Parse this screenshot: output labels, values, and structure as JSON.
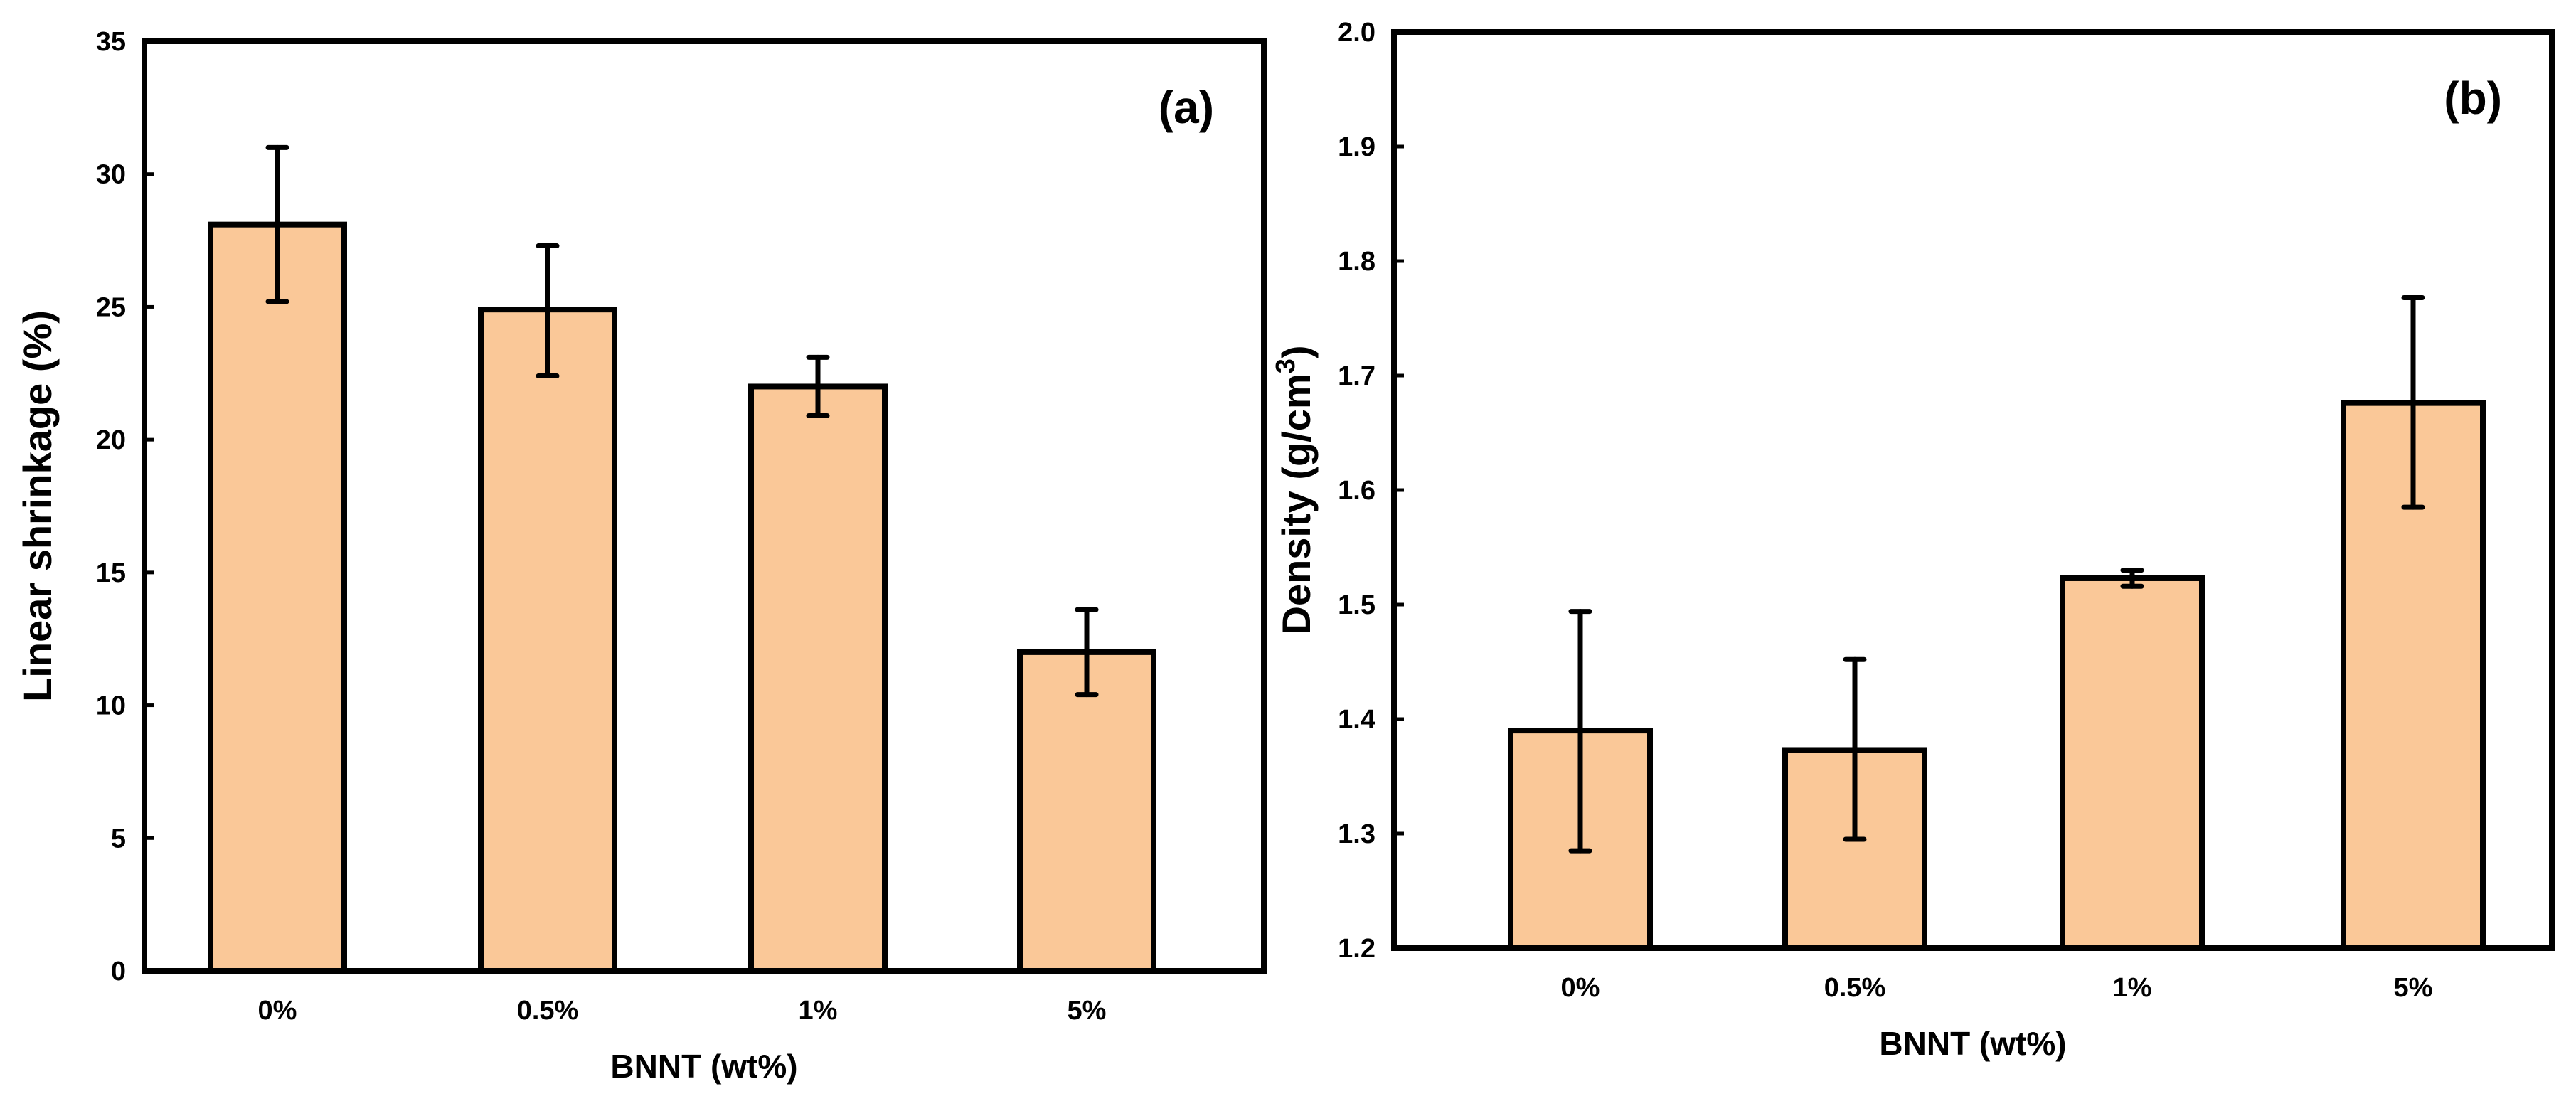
{
  "figure": {
    "panels": [
      "a",
      "b"
    ]
  },
  "colors": {
    "bar_fill": "#FAC898",
    "bar_stroke": "#000000",
    "axis": "#000000",
    "background": "#ffffff"
  },
  "chart_data": [
    {
      "type": "bar",
      "panel_label": "(a)",
      "title": "",
      "categories": [
        "0%",
        "0.5%",
        "1%",
        "5%"
      ],
      "values": [
        28.1,
        24.9,
        22.0,
        12.0
      ],
      "error_low": [
        25.2,
        22.4,
        20.9,
        10.4
      ],
      "error_high": [
        31.0,
        27.3,
        23.1,
        13.6
      ],
      "xlabel": "BNNT (wt%)",
      "ylabel": "Linear shrinkage (%)",
      "ylim": [
        0,
        35
      ],
      "yticks": [
        0,
        5,
        10,
        15,
        20,
        25,
        30,
        35
      ],
      "ytick_labels": [
        "0",
        "5",
        "10",
        "15",
        "20",
        "25",
        "30",
        "35"
      ],
      "grid": false
    },
    {
      "type": "bar",
      "panel_label": "(b)",
      "title": "",
      "categories": [
        "0%",
        "0.5%",
        "1%",
        "5%"
      ],
      "values": [
        1.39,
        1.373,
        1.523,
        1.676
      ],
      "error_low": [
        1.285,
        1.295,
        1.516,
        1.585
      ],
      "error_high": [
        1.494,
        1.452,
        1.53,
        1.768
      ],
      "xlabel": "BNNT (wt%)",
      "ylabel": "Density (g/cm",
      "ylabel_sup": "3",
      "ylabel_close": ")",
      "ylim": [
        1.2,
        2.0
      ],
      "yticks": [
        1.2,
        1.3,
        1.4,
        1.5,
        1.6,
        1.7,
        1.8,
        1.9,
        2.0
      ],
      "ytick_labels": [
        "1.2",
        "1.3",
        "1.4",
        "1.5",
        "1.6",
        "1.7",
        "1.8",
        "1.9",
        "2.0"
      ],
      "grid": false
    }
  ]
}
